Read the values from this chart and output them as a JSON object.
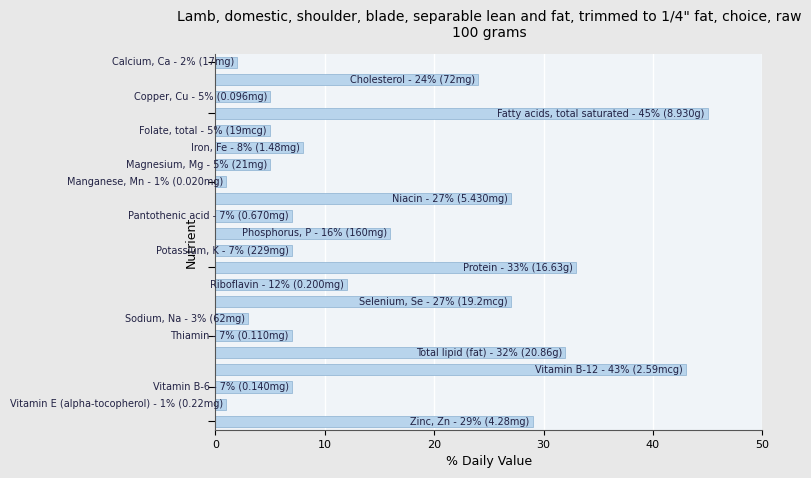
{
  "title": "Lamb, domestic, shoulder, blade, separable lean and fat, trimmed to 1/4\" fat, choice, raw\n100 grams",
  "xlabel": "% Daily Value",
  "ylabel": "Nutrient",
  "xlim": [
    0,
    50
  ],
  "xticks": [
    0,
    10,
    20,
    30,
    40,
    50
  ],
  "background_color": "#e8e8e8",
  "plot_bg_color": "#f0f4f8",
  "bar_color": "#b8d4ec",
  "bar_edge_color": "#8ab0d0",
  "nutrients": [
    {
      "label": "Calcium, Ca - 2% (17mg)",
      "value": 2
    },
    {
      "label": "Cholesterol - 24% (72mg)",
      "value": 24
    },
    {
      "label": "Copper, Cu - 5% (0.096mg)",
      "value": 5
    },
    {
      "label": "Fatty acids, total saturated - 45% (8.930g)",
      "value": 45
    },
    {
      "label": "Folate, total - 5% (19mcg)",
      "value": 5
    },
    {
      "label": "Iron, Fe - 8% (1.48mg)",
      "value": 8
    },
    {
      "label": "Magnesium, Mg - 5% (21mg)",
      "value": 5
    },
    {
      "label": "Manganese, Mn - 1% (0.020mg)",
      "value": 1
    },
    {
      "label": "Niacin - 27% (5.430mg)",
      "value": 27
    },
    {
      "label": "Pantothenic acid - 7% (0.670mg)",
      "value": 7
    },
    {
      "label": "Phosphorus, P - 16% (160mg)",
      "value": 16
    },
    {
      "label": "Potassium, K - 7% (229mg)",
      "value": 7
    },
    {
      "label": "Protein - 33% (16.63g)",
      "value": 33
    },
    {
      "label": "Riboflavin - 12% (0.200mg)",
      "value": 12
    },
    {
      "label": "Selenium, Se - 27% (19.2mcg)",
      "value": 27
    },
    {
      "label": "Sodium, Na - 3% (62mg)",
      "value": 3
    },
    {
      "label": "Thiamin - 7% (0.110mg)",
      "value": 7
    },
    {
      "label": "Total lipid (fat) - 32% (20.86g)",
      "value": 32
    },
    {
      "label": "Vitamin B-12 - 43% (2.59mcg)",
      "value": 43
    },
    {
      "label": "Vitamin B-6 - 7% (0.140mg)",
      "value": 7
    },
    {
      "label": "Vitamin E (alpha-tocopherol) - 1% (0.22mg)",
      "value": 1
    },
    {
      "label": "Zinc, Zn - 29% (4.28mg)",
      "value": 29
    }
  ],
  "title_fontsize": 10,
  "label_fontsize": 7,
  "axis_fontsize": 9,
  "bar_height": 0.65
}
